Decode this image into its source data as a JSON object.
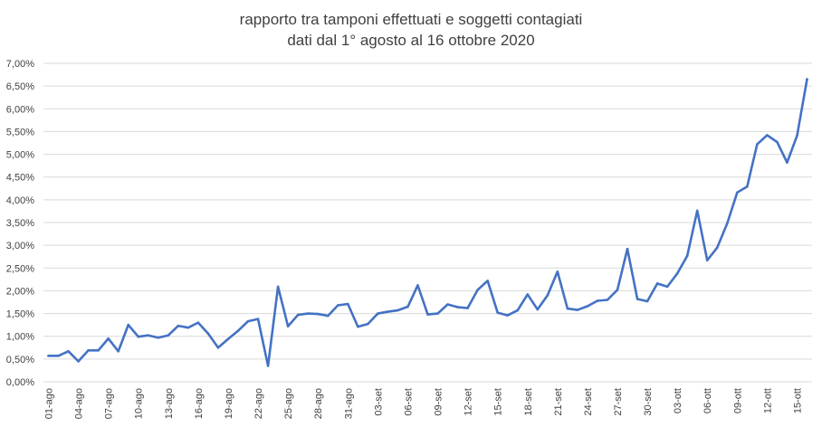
{
  "chart_data": {
    "type": "line",
    "title_lines": [
      "rapporto tra tamponi effettuati e soggetti contagiati",
      "dati dal 1° agosto al 16 ottobre 2020"
    ],
    "xlabel": "",
    "ylabel": "",
    "ylim": [
      0,
      7
    ],
    "y_ticks": [
      0,
      0.5,
      1,
      1.5,
      2,
      2.5,
      3,
      3.5,
      4,
      4.5,
      5,
      5.5,
      6,
      6.5,
      7
    ],
    "y_tick_labels": [
      "0,00%",
      "0,50%",
      "1,00%",
      "1,50%",
      "2,00%",
      "2,50%",
      "3,00%",
      "3,50%",
      "4,00%",
      "4,50%",
      "5,00%",
      "5,50%",
      "6,00%",
      "6,50%",
      "7,00%"
    ],
    "x_tick_labels": [
      {
        "index": 0,
        "label": "01-ago"
      },
      {
        "index": 3,
        "label": "04-ago"
      },
      {
        "index": 6,
        "label": "07-ago"
      },
      {
        "index": 9,
        "label": "10-ago"
      },
      {
        "index": 12,
        "label": "13-ago"
      },
      {
        "index": 15,
        "label": "16-ago"
      },
      {
        "index": 18,
        "label": "19-ago"
      },
      {
        "index": 21,
        "label": "22-ago"
      },
      {
        "index": 24,
        "label": "25-ago"
      },
      {
        "index": 27,
        "label": "28-ago"
      },
      {
        "index": 30,
        "label": "31-ago"
      },
      {
        "index": 33,
        "label": "03-set"
      },
      {
        "index": 36,
        "label": "06-set"
      },
      {
        "index": 39,
        "label": "09-set"
      },
      {
        "index": 42,
        "label": "12-set"
      },
      {
        "index": 45,
        "label": "15-set"
      },
      {
        "index": 48,
        "label": "18-set"
      },
      {
        "index": 51,
        "label": "21-set"
      },
      {
        "index": 54,
        "label": "24-set"
      },
      {
        "index": 57,
        "label": "27-set"
      },
      {
        "index": 60,
        "label": "30-set"
      },
      {
        "index": 63,
        "label": "03-ott"
      },
      {
        "index": 66,
        "label": "06-ott"
      },
      {
        "index": 69,
        "label": "09-ott"
      },
      {
        "index": 72,
        "label": "12-ott"
      },
      {
        "index": 75,
        "label": "15-ott"
      }
    ],
    "series": [
      {
        "name": "rapporto",
        "color": "#4472c4",
        "values": [
          0.57,
          0.57,
          0.67,
          0.45,
          0.69,
          0.69,
          0.95,
          0.67,
          1.25,
          0.99,
          1.02,
          0.97,
          1.02,
          1.23,
          1.19,
          1.3,
          1.06,
          0.75,
          0.94,
          1.12,
          1.33,
          1.38,
          0.35,
          2.09,
          1.22,
          1.47,
          1.5,
          1.49,
          1.45,
          1.68,
          1.71,
          1.21,
          1.27,
          1.5,
          1.54,
          1.57,
          1.65,
          2.12,
          1.48,
          1.5,
          1.7,
          1.64,
          1.62,
          2.02,
          2.22,
          1.52,
          1.46,
          1.57,
          1.92,
          1.59,
          1.9,
          2.42,
          1.61,
          1.58,
          1.66,
          1.78,
          1.8,
          2.02,
          2.92,
          1.82,
          1.77,
          2.16,
          2.09,
          2.38,
          2.77,
          3.76,
          2.67,
          2.95,
          3.48,
          4.16,
          4.29,
          5.22,
          5.42,
          5.27,
          4.82,
          5.41,
          6.65
        ]
      }
    ],
    "legend": "none",
    "grid": "horizontal"
  }
}
